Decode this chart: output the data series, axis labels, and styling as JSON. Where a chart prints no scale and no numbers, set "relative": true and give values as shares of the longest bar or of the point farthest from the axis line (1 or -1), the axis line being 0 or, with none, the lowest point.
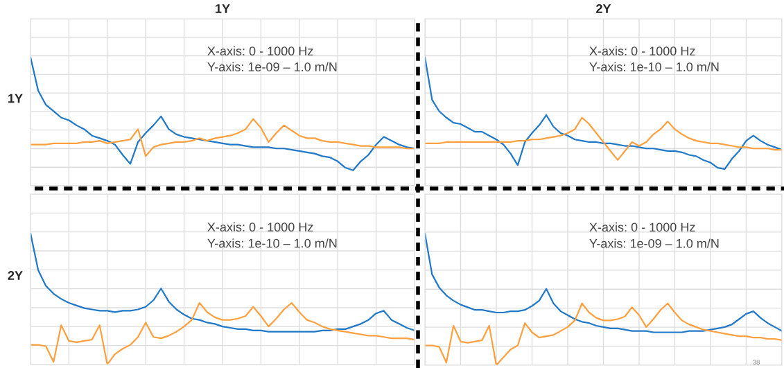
{
  "chart_data": [
    {
      "type": "line",
      "title": "1Y",
      "ylabel": "1Y",
      "relative": true,
      "grid": true,
      "categories": [
        null,
        null,
        null,
        null,
        null,
        null,
        null,
        null,
        null,
        null,
        null,
        null,
        null,
        null,
        null,
        null,
        null,
        null,
        null,
        null,
        null,
        null,
        null,
        null,
        null,
        null,
        null,
        null,
        null,
        null,
        null,
        null,
        null,
        null,
        null,
        null,
        null,
        null,
        null,
        null,
        null,
        null,
        null,
        null,
        null,
        null,
        null,
        null,
        null,
        null,
        null
      ],
      "annotations": [
        "X-axis: 0 - 1000 Hz",
        "Y-axis: 1e-09 – 1.0 m/N"
      ],
      "series": [
        {
          "color": "#1f78c8",
          "values": [
            1.0,
            0.74,
            0.63,
            0.58,
            0.53,
            0.51,
            0.47,
            0.44,
            0.39,
            0.37,
            0.35,
            0.32,
            0.24,
            0.17,
            0.34,
            0.41,
            0.47,
            0.54,
            0.44,
            0.4,
            0.38,
            0.37,
            0.36,
            0.35,
            0.34,
            0.33,
            0.32,
            0.32,
            0.31,
            0.3,
            0.3,
            0.3,
            0.29,
            0.29,
            0.28,
            0.27,
            0.26,
            0.25,
            0.23,
            0.22,
            0.19,
            0.14,
            0.12,
            0.19,
            0.24,
            0.32,
            0.38,
            0.35,
            0.32,
            0.3,
            0.29
          ]
        },
        {
          "color": "#ffa040",
          "values": [
            0.32,
            0.32,
            0.32,
            0.33,
            0.33,
            0.33,
            0.33,
            0.34,
            0.34,
            0.35,
            0.33,
            0.34,
            0.35,
            0.36,
            0.44,
            0.23,
            0.3,
            0.32,
            0.33,
            0.34,
            0.34,
            0.35,
            0.37,
            0.35,
            0.37,
            0.38,
            0.39,
            0.41,
            0.44,
            0.52,
            0.45,
            0.34,
            0.41,
            0.47,
            0.43,
            0.39,
            0.37,
            0.37,
            0.35,
            0.34,
            0.34,
            0.33,
            0.32,
            0.31,
            0.31,
            0.3,
            0.3,
            0.3,
            0.3,
            0.29,
            0.29
          ]
        }
      ]
    },
    {
      "type": "line",
      "title": "2Y",
      "relative": true,
      "grid": true,
      "categories": [
        null,
        null,
        null,
        null,
        null,
        null,
        null,
        null,
        null,
        null,
        null,
        null,
        null,
        null,
        null,
        null,
        null,
        null,
        null,
        null,
        null,
        null,
        null,
        null,
        null,
        null,
        null,
        null,
        null,
        null,
        null,
        null,
        null,
        null,
        null,
        null,
        null,
        null,
        null,
        null,
        null,
        null,
        null,
        null,
        null,
        null,
        null,
        null,
        null,
        null,
        null
      ],
      "annotations": [
        "X-axis: 0 - 1000 Hz",
        "Y-axis: 1e-10 – 1.0 m/N"
      ],
      "series": [
        {
          "color": "#1f78c8",
          "values": [
            1.0,
            0.67,
            0.58,
            0.53,
            0.49,
            0.48,
            0.45,
            0.42,
            0.42,
            0.39,
            0.36,
            0.32,
            0.25,
            0.16,
            0.34,
            0.41,
            0.47,
            0.55,
            0.46,
            0.41,
            0.39,
            0.36,
            0.35,
            0.34,
            0.34,
            0.33,
            0.33,
            0.32,
            0.31,
            0.31,
            0.3,
            0.29,
            0.29,
            0.28,
            0.27,
            0.27,
            0.26,
            0.24,
            0.23,
            0.2,
            0.18,
            0.14,
            0.13,
            0.21,
            0.27,
            0.35,
            0.39,
            0.35,
            0.32,
            0.3,
            0.28
          ]
        },
        {
          "color": "#ffa040",
          "values": [
            0.33,
            0.33,
            0.33,
            0.34,
            0.34,
            0.34,
            0.34,
            0.34,
            0.34,
            0.34,
            0.34,
            0.34,
            0.34,
            0.35,
            0.35,
            0.36,
            0.36,
            0.37,
            0.38,
            0.39,
            0.41,
            0.44,
            0.53,
            0.48,
            0.41,
            0.34,
            0.27,
            0.2,
            0.27,
            0.34,
            0.31,
            0.34,
            0.4,
            0.44,
            0.5,
            0.44,
            0.4,
            0.37,
            0.35,
            0.34,
            0.33,
            0.33,
            0.32,
            0.31,
            0.3,
            0.3,
            0.29,
            0.29,
            0.29,
            0.28,
            0.28
          ]
        }
      ]
    },
    {
      "type": "line",
      "ylabel": "2Y",
      "relative": true,
      "grid": true,
      "categories": [
        null,
        null,
        null,
        null,
        null,
        null,
        null,
        null,
        null,
        null,
        null,
        null,
        null,
        null,
        null,
        null,
        null,
        null,
        null,
        null,
        null,
        null,
        null,
        null,
        null,
        null,
        null,
        null,
        null,
        null,
        null,
        null,
        null,
        null,
        null,
        null,
        null,
        null,
        null,
        null,
        null,
        null,
        null,
        null,
        null,
        null,
        null,
        null,
        null,
        null,
        null
      ],
      "annotations": [
        "X-axis: 0 - 1000 Hz",
        "Y-axis: 1e-10 – 1.0 m/N"
      ],
      "series": [
        {
          "color": "#1f78c8",
          "values": [
            1.0,
            0.72,
            0.6,
            0.54,
            0.5,
            0.47,
            0.45,
            0.43,
            0.42,
            0.41,
            0.41,
            0.4,
            0.41,
            0.41,
            0.42,
            0.44,
            0.49,
            0.58,
            0.48,
            0.42,
            0.38,
            0.35,
            0.34,
            0.32,
            0.31,
            0.29,
            0.28,
            0.27,
            0.27,
            0.26,
            0.26,
            0.25,
            0.25,
            0.25,
            0.25,
            0.25,
            0.25,
            0.25,
            0.26,
            0.26,
            0.27,
            0.27,
            0.29,
            0.31,
            0.34,
            0.39,
            0.41,
            0.34,
            0.31,
            0.28,
            0.26
          ]
        },
        {
          "color": "#ffa040",
          "values": [
            0.15,
            0.15,
            0.14,
            0.02,
            0.3,
            0.18,
            0.17,
            0.18,
            0.19,
            0.3,
            0.0,
            0.08,
            0.12,
            0.15,
            0.21,
            0.32,
            0.21,
            0.2,
            0.22,
            0.25,
            0.29,
            0.34,
            0.47,
            0.4,
            0.36,
            0.34,
            0.34,
            0.35,
            0.37,
            0.44,
            0.37,
            0.29,
            0.35,
            0.42,
            0.47,
            0.4,
            0.34,
            0.32,
            0.29,
            0.27,
            0.26,
            0.25,
            0.24,
            0.23,
            0.22,
            0.22,
            0.21,
            0.2,
            0.2,
            0.2,
            0.19
          ]
        }
      ]
    },
    {
      "type": "line",
      "relative": true,
      "grid": true,
      "categories": [
        null,
        null,
        null,
        null,
        null,
        null,
        null,
        null,
        null,
        null,
        null,
        null,
        null,
        null,
        null,
        null,
        null,
        null,
        null,
        null,
        null,
        null,
        null,
        null,
        null,
        null,
        null,
        null,
        null,
        null,
        null,
        null,
        null,
        null,
        null,
        null,
        null,
        null,
        null,
        null,
        null,
        null,
        null,
        null,
        null,
        null,
        null,
        null,
        null,
        null,
        null
      ],
      "annotations": [
        "X-axis: 0 - 1000 Hz",
        "Y-axis: 1e-09 – 1.0 m/N",
        "38"
      ],
      "series": [
        {
          "color": "#1f78c8",
          "values": [
            1.0,
            0.69,
            0.59,
            0.53,
            0.49,
            0.46,
            0.44,
            0.42,
            0.42,
            0.41,
            0.4,
            0.4,
            0.41,
            0.41,
            0.42,
            0.45,
            0.49,
            0.58,
            0.47,
            0.41,
            0.38,
            0.35,
            0.33,
            0.32,
            0.3,
            0.29,
            0.28,
            0.28,
            0.27,
            0.26,
            0.26,
            0.26,
            0.25,
            0.25,
            0.25,
            0.25,
            0.25,
            0.26,
            0.26,
            0.26,
            0.27,
            0.28,
            0.29,
            0.31,
            0.35,
            0.39,
            0.41,
            0.36,
            0.32,
            0.29,
            0.26
          ]
        },
        {
          "color": "#ffa040",
          "values": [
            0.15,
            0.15,
            0.14,
            0.02,
            0.3,
            0.18,
            0.17,
            0.18,
            0.19,
            0.3,
            0.0,
            0.06,
            0.12,
            0.15,
            0.32,
            0.25,
            0.21,
            0.22,
            0.23,
            0.26,
            0.29,
            0.34,
            0.47,
            0.4,
            0.36,
            0.34,
            0.34,
            0.35,
            0.37,
            0.44,
            0.38,
            0.29,
            0.35,
            0.42,
            0.47,
            0.4,
            0.34,
            0.31,
            0.29,
            0.27,
            0.26,
            0.25,
            0.24,
            0.23,
            0.22,
            0.22,
            0.21,
            0.21,
            0.2,
            0.2,
            0.19
          ]
        }
      ]
    }
  ]
}
